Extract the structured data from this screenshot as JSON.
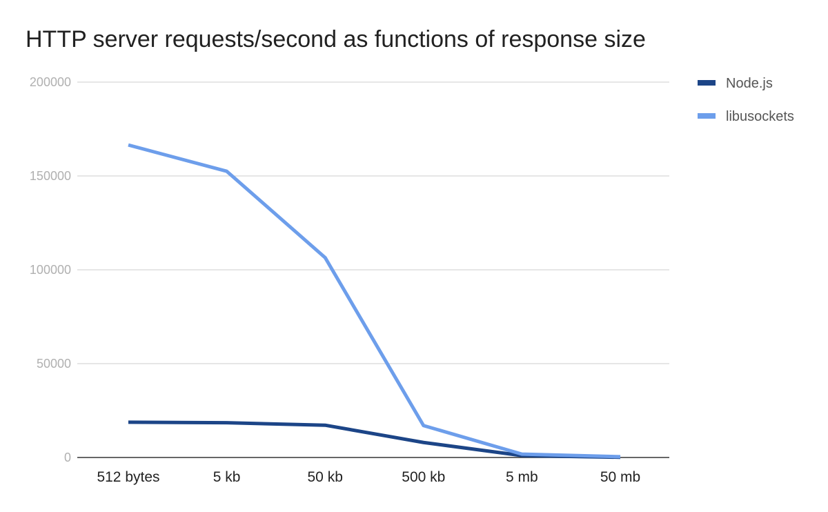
{
  "chart_data": {
    "type": "line",
    "title": "HTTP server requests/second as functions of response size",
    "xlabel": "",
    "ylabel": "",
    "categories": [
      "512 bytes",
      "5 kb",
      "50 kb",
      "500 kb",
      "5 mb",
      "50 mb"
    ],
    "ylim": [
      0,
      200000
    ],
    "yticks": [
      "0",
      "50000",
      "100000",
      "150000",
      "200000"
    ],
    "grid": true,
    "legend_position": "right",
    "series": [
      {
        "name": "Node.js",
        "color": "#1c4587",
        "values": [
          18800,
          18500,
          17200,
          8000,
          1000,
          100
        ]
      },
      {
        "name": "libusockets",
        "color": "#6d9eeb",
        "values": [
          166500,
          152500,
          106500,
          17000,
          1800,
          400
        ]
      }
    ]
  }
}
